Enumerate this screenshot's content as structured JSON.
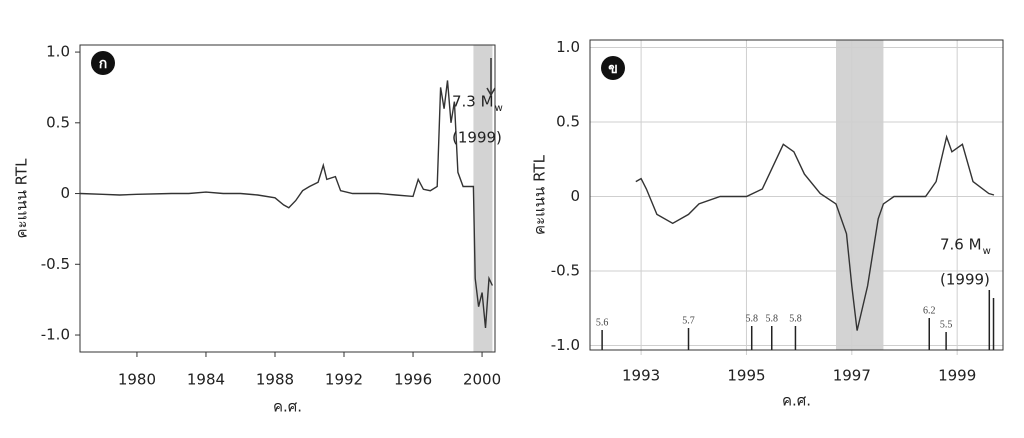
{
  "chart_data": [
    {
      "type": "line",
      "panel_label": "ก",
      "y_label": "คะแนน RTL",
      "x_label": "ค.ศ.",
      "xlim": [
        1976.7,
        2000.75
      ],
      "ylim": [
        -1.12,
        1.05
      ],
      "xticks": [
        1980,
        1984,
        1988,
        1992,
        1996,
        2000
      ],
      "yticks": [
        {
          "value": 1,
          "label": "1.0"
        },
        0.5,
        0,
        -0.5,
        {
          "value": -1,
          "label": "-1.0"
        }
      ],
      "grid": false,
      "color": "#333333",
      "highlight": [
        1999.5,
        2000.6
      ],
      "x": [
        1976.7,
        1978,
        1979,
        1980,
        1982,
        1983,
        1984,
        1985,
        1986,
        1987,
        1988,
        1988.5,
        1988.8,
        1989.2,
        1989.6,
        1990,
        1990.5,
        1990.8,
        1991,
        1991.5,
        1991.8,
        1992.5,
        1994,
        1995,
        1996,
        1996.3,
        1996.6,
        1997,
        1997.4,
        1997.6,
        1997.8,
        1998,
        1998.2,
        1998.4,
        1998.6,
        1998.9,
        1999.2,
        1999.5,
        1999.6,
        1999.8,
        2000,
        2000.2,
        2000.4,
        2000.6
      ],
      "values": [
        0,
        -0.005,
        -0.01,
        -0.005,
        0,
        0,
        0.01,
        0,
        0,
        -0.01,
        -0.03,
        -0.08,
        -0.1,
        -0.05,
        0.02,
        0.05,
        0.08,
        0.2,
        0.1,
        0.12,
        0.02,
        0,
        0,
        -0.01,
        -0.02,
        0.1,
        0.03,
        0.02,
        0.05,
        0.75,
        0.6,
        0.8,
        0.5,
        0.65,
        0.15,
        0.05,
        0.05,
        0.05,
        -0.6,
        -0.8,
        -0.7,
        -0.95,
        -0.6,
        -0.65
      ],
      "annotation": {
        "text": "7.3 M",
        "subscript": "w",
        "year": "(1999)"
      }
    },
    {
      "type": "line",
      "panel_label": "ข",
      "y_label": "คะแนน RTL",
      "x_label": "ค.ศ.",
      "xlim": [
        1992.03,
        1999.87
      ],
      "ylim": [
        -1.03,
        1.05
      ],
      "xticks": [
        1993,
        1995,
        1997,
        1999
      ],
      "yticks": [
        {
          "value": 1,
          "label": "1.0"
        },
        0.5,
        0,
        -0.5,
        {
          "value": -1,
          "label": "-1.0"
        }
      ],
      "grid": true,
      "color": "#333333",
      "highlight": [
        1996.7,
        1997.6
      ],
      "x": [
        1992.9,
        1993.0,
        1993.1,
        1993.3,
        1993.6,
        1993.9,
        1994.1,
        1994.5,
        1995,
        1995.3,
        1995.5,
        1995.7,
        1995.9,
        1996.1,
        1996.4,
        1996.7,
        1996.9,
        1997.0,
        1997.1,
        1997.3,
        1997.5,
        1997.6,
        1997.8,
        1998.4,
        1998.6,
        1998.8,
        1998.9,
        1999.1,
        1999.3,
        1999.6,
        1999.7
      ],
      "values": [
        0.1,
        0.12,
        0.05,
        -0.12,
        -0.18,
        -0.12,
        -0.05,
        0,
        0,
        0.05,
        0.2,
        0.35,
        0.3,
        0.15,
        0.02,
        -0.05,
        -0.25,
        -0.6,
        -0.9,
        -0.6,
        -0.15,
        -0.05,
        0,
        0,
        0.1,
        0.4,
        0.3,
        0.35,
        0.1,
        0.02,
        0.01
      ],
      "events": {
        "x": [
          1992.26,
          1993.9,
          1995.1,
          1995.48,
          1995.93,
          1998.47,
          1998.79,
          1999.61,
          1999.69
        ],
        "magnitudes": [
          5.6,
          5.7,
          5.8,
          5.8,
          5.8,
          6.2,
          5.5,
          7.6,
          7.2
        ],
        "value_labels": [
          "5.6",
          "5.7",
          "5.8",
          "5.8",
          "5.8",
          "6.2",
          "5.5",
          null,
          null
        ]
      },
      "annotation": {
        "text": "7.6 M",
        "subscript": "w",
        "year": "(1999)"
      }
    }
  ]
}
